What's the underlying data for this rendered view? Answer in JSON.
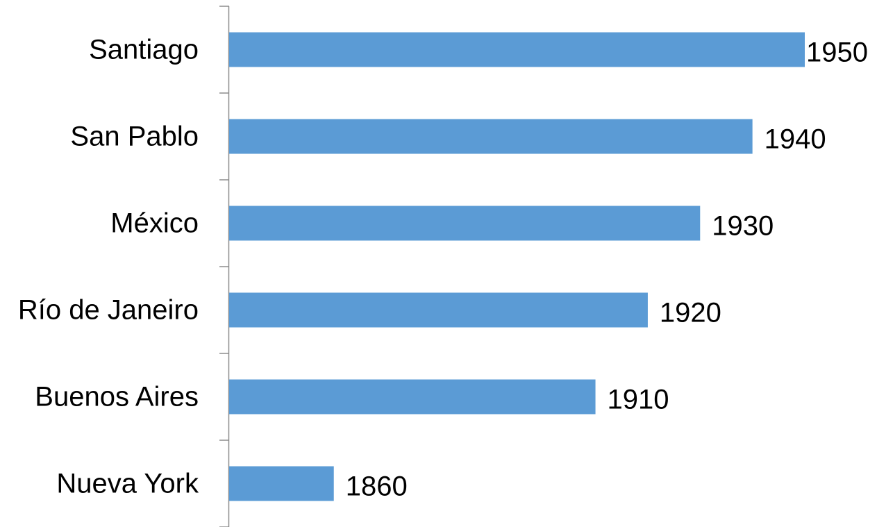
{
  "chart_data": {
    "type": "bar",
    "orientation": "horizontal",
    "categories": [
      "Santiago",
      "San Pablo",
      "México",
      "Río de Janeiro",
      "Buenos Aires",
      "Nueva York"
    ],
    "values": [
      1950,
      1940,
      1930,
      1920,
      1910,
      1860
    ],
    "xlim": [
      1840,
      1950
    ],
    "bar_color": "#5b9bd5",
    "axis_color": "#8c8c8c",
    "grid": false,
    "legend": "none"
  }
}
